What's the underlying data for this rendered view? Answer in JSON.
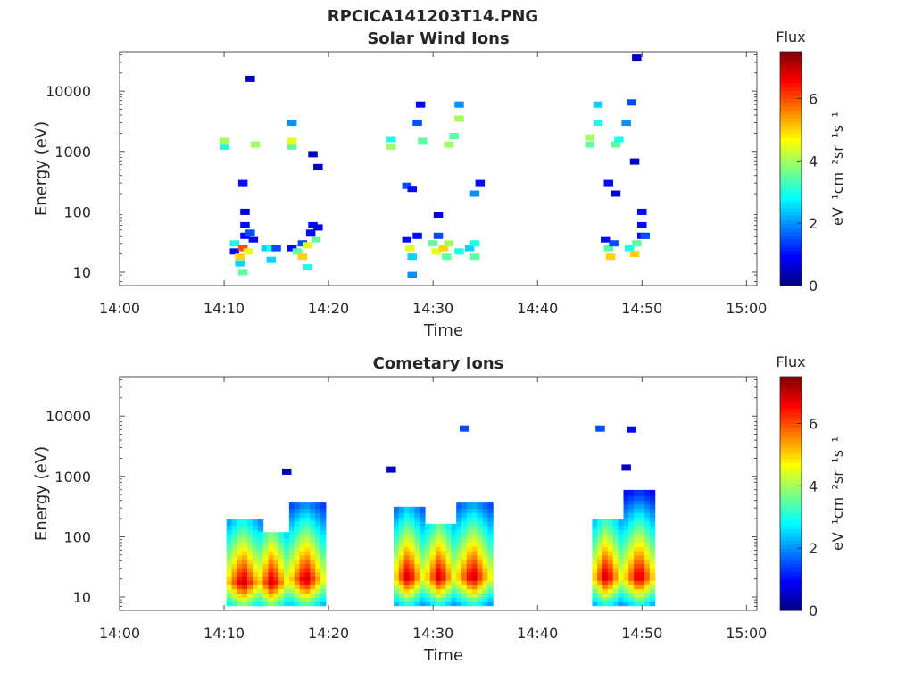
{
  "figure": {
    "title": "RPCICA141203T14.PNG"
  },
  "chart_data": [
    {
      "type": "heatmap",
      "title": "Solar Wind Ions",
      "xlabel": "Time",
      "ylabel": "Energy (eV)",
      "x_ticks": [
        "14:00",
        "14:10",
        "14:20",
        "14:30",
        "14:40",
        "14:50",
        "15:00"
      ],
      "y_ticks": [
        "10",
        "100",
        "1000",
        "10000"
      ],
      "y_scale": "log",
      "ylim": [
        6,
        45000
      ],
      "xlim_minutes": [
        0,
        61
      ],
      "colorbar": {
        "title": "Flux",
        "units": "eV⁻¹cm⁻²sr⁻¹s⁻¹",
        "ticks": [
          "0",
          "2",
          "4",
          "6"
        ],
        "range": [
          0,
          7.5
        ],
        "colormap": "jet"
      },
      "cells": [
        [
          10.0,
          1200,
          3.0
        ],
        [
          10.0,
          1500,
          4.0
        ],
        [
          13.0,
          1300,
          4.0
        ],
        [
          16.5,
          1200,
          3.5
        ],
        [
          16.5,
          1500,
          4.5
        ],
        [
          16.5,
          3000,
          2.0
        ],
        [
          18.5,
          900,
          0.5
        ],
        [
          12.5,
          16000,
          0.5
        ],
        [
          11.8,
          300,
          1.0
        ],
        [
          19.0,
          550,
          0.5
        ],
        [
          11.0,
          30,
          3.0
        ],
        [
          11.0,
          22,
          1.0
        ],
        [
          11.5,
          18,
          5.0
        ],
        [
          11.5,
          14,
          2.5
        ],
        [
          11.8,
          25,
          6.0
        ],
        [
          11.8,
          10,
          3.5
        ],
        [
          12.0,
          40,
          1.0
        ],
        [
          12.0,
          60,
          1.0
        ],
        [
          12.0,
          100,
          0.7
        ],
        [
          12.3,
          22,
          4.5
        ],
        [
          12.5,
          45,
          1.5
        ],
        [
          12.8,
          35,
          1.0
        ],
        [
          14.0,
          25,
          2.5
        ],
        [
          14.5,
          25,
          3.0
        ],
        [
          14.5,
          16,
          2.5
        ],
        [
          15.0,
          25,
          1.5
        ],
        [
          16.5,
          25,
          1.0
        ],
        [
          17.0,
          22,
          3.5
        ],
        [
          17.5,
          30,
          1.5
        ],
        [
          17.5,
          18,
          5.0
        ],
        [
          18.0,
          28,
          4.5
        ],
        [
          18.0,
          12,
          3.0
        ],
        [
          18.3,
          45,
          1.0
        ],
        [
          18.5,
          60,
          1.0
        ],
        [
          18.8,
          35,
          3.5
        ],
        [
          19.0,
          55,
          0.8
        ],
        [
          26.0,
          1200,
          4.0
        ],
        [
          26.0,
          1600,
          3.0
        ],
        [
          29.0,
          1500,
          3.5
        ],
        [
          28.8,
          6000,
          1.0
        ],
        [
          28.5,
          3000,
          1.5
        ],
        [
          31.5,
          1300,
          4.0
        ],
        [
          32.5,
          3500,
          4.0
        ],
        [
          32.5,
          6000,
          2.0
        ],
        [
          32.0,
          1800,
          3.5
        ],
        [
          27.5,
          270,
          1.5
        ],
        [
          28.0,
          240,
          1.0
        ],
        [
          30.5,
          90,
          0.7
        ],
        [
          34.0,
          200,
          2.0
        ],
        [
          34.5,
          300,
          1.0
        ],
        [
          27.5,
          35,
          1.0
        ],
        [
          27.8,
          25,
          4.5
        ],
        [
          28.0,
          18,
          2.5
        ],
        [
          28.0,
          9,
          2.0
        ],
        [
          28.5,
          40,
          1.0
        ],
        [
          30.0,
          30,
          3.5
        ],
        [
          30.3,
          22,
          4.5
        ],
        [
          30.5,
          40,
          1.5
        ],
        [
          31.0,
          25,
          5.0
        ],
        [
          31.3,
          18,
          3.5
        ],
        [
          31.5,
          30,
          4.0
        ],
        [
          32.5,
          22,
          3.0
        ],
        [
          33.5,
          25,
          2.5
        ],
        [
          34.0,
          30,
          3.0
        ],
        [
          34.0,
          18,
          3.5
        ],
        [
          45.0,
          1700,
          4.0
        ],
        [
          45.0,
          1300,
          3.5
        ],
        [
          45.8,
          6000,
          2.5
        ],
        [
          45.8,
          3000,
          3.0
        ],
        [
          47.5,
          1300,
          3.5
        ],
        [
          47.8,
          1600,
          3.0
        ],
        [
          48.5,
          3000,
          2.0
        ],
        [
          49.0,
          6500,
          1.5
        ],
        [
          49.3,
          680,
          0.5
        ],
        [
          46.8,
          300,
          1.0
        ],
        [
          47.5,
          200,
          0.7
        ],
        [
          49.5,
          36000,
          0.5
        ],
        [
          46.5,
          35,
          1.0
        ],
        [
          46.8,
          25,
          3.5
        ],
        [
          47.0,
          18,
          5.0
        ],
        [
          47.3,
          30,
          1.5
        ],
        [
          48.8,
          25,
          3.0
        ],
        [
          49.3,
          20,
          5.0
        ],
        [
          49.5,
          30,
          3.5
        ],
        [
          50.0,
          40,
          1.0
        ],
        [
          50.0,
          60,
          1.0
        ],
        [
          50.0,
          100,
          1.0
        ],
        [
          50.3,
          40,
          1.5
        ]
      ]
    },
    {
      "type": "heatmap",
      "title": "Cometary Ions",
      "xlabel": "Time",
      "ylabel": "Energy (eV)",
      "x_ticks": [
        "14:00",
        "14:10",
        "14:20",
        "14:30",
        "14:40",
        "14:50",
        "15:00"
      ],
      "y_ticks": [
        "10",
        "100",
        "1000",
        "10000"
      ],
      "y_scale": "log",
      "ylim": [
        6,
        45000
      ],
      "xlim_minutes": [
        0,
        61
      ],
      "colorbar": {
        "title": "Flux",
        "units": "eV⁻¹cm⁻²sr⁻¹s⁻¹",
        "ticks": [
          "0",
          "2",
          "4",
          "6"
        ],
        "range": [
          0,
          7.5
        ],
        "colormap": "jet"
      },
      "cells": [
        [
          16.0,
          1200,
          0.5
        ],
        [
          26.0,
          1300,
          0.5
        ],
        [
          33.0,
          6200,
          1.5
        ],
        [
          46.0,
          6200,
          1.5
        ],
        [
          48.5,
          1400,
          0.5
        ],
        [
          49.0,
          6000,
          1.0
        ]
      ],
      "bursts": [
        {
          "t0": 10.5,
          "t1": 13.5,
          "peak": 18,
          "top": 180
        },
        {
          "t0": 13.5,
          "t1": 16.0,
          "peak": 18,
          "top": 120
        },
        {
          "t0": 16.5,
          "t1": 19.5,
          "peak": 20,
          "top": 380
        },
        {
          "t0": 26.5,
          "t1": 29.0,
          "peak": 22,
          "top": 300
        },
        {
          "t0": 29.5,
          "t1": 32.0,
          "peak": 22,
          "top": 150
        },
        {
          "t0": 32.5,
          "t1": 35.5,
          "peak": 22,
          "top": 350
        },
        {
          "t0": 45.5,
          "t1": 48.0,
          "peak": 22,
          "top": 200
        },
        {
          "t0": 48.5,
          "t1": 51.3,
          "peak": 22,
          "top": 550
        }
      ]
    }
  ]
}
